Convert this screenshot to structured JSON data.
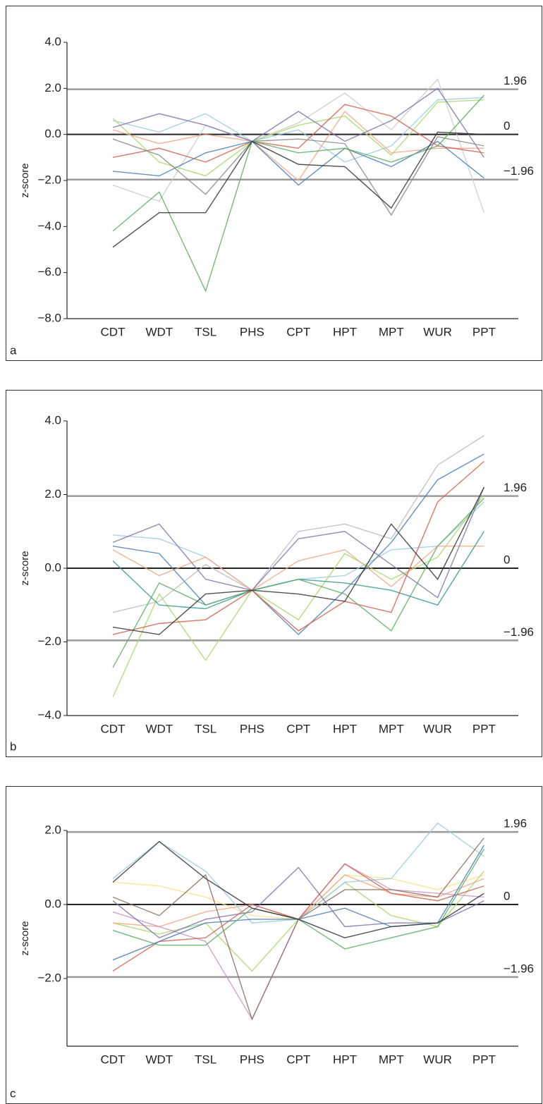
{
  "chart_data": [
    {
      "type": "line",
      "panel_label": "a",
      "y_label": "z-score",
      "categories": [
        "CDT",
        "WDT",
        "TSL",
        "PHS",
        "CPT",
        "HPT",
        "MPT",
        "WUR",
        "PPT"
      ],
      "ylim": [
        -8,
        4
      ],
      "yticks": [
        {
          "value": 4,
          "label": "4.0"
        },
        {
          "value": 2,
          "label": "2.0"
        },
        {
          "value": 0,
          "label": "0.0"
        },
        {
          "value": -2,
          "label": "−2.0"
        },
        {
          "value": -4,
          "label": "−4.0"
        },
        {
          "value": -6,
          "label": "−6.0"
        },
        {
          "value": -8,
          "label": "−8.0"
        }
      ],
      "reference_lines": [
        {
          "value": 1.96,
          "label": "1.96"
        },
        {
          "value": 0,
          "label": "0"
        },
        {
          "value": -1.96,
          "label": "−1.96"
        }
      ],
      "series": [
        {
          "color": "#cccccc",
          "values": [
            -2.2,
            -2.9,
            0.4,
            -0.3,
            0.5,
            1.8,
            0.2,
            2.4,
            -3.4
          ]
        },
        {
          "color": "#9ecae1",
          "values": [
            0.6,
            0.1,
            0.9,
            -0.3,
            0.2,
            -1.2,
            -0.5,
            1.5,
            1.6
          ]
        },
        {
          "color": "#a6d96a",
          "values": [
            0.7,
            -1.2,
            -1.8,
            -0.3,
            0.4,
            0.8,
            -0.9,
            1.4,
            1.5
          ]
        },
        {
          "color": "#f4a582",
          "values": [
            0.2,
            -0.4,
            0.0,
            -0.3,
            -2.0,
            1.0,
            -0.8,
            -0.6,
            -0.6
          ]
        },
        {
          "color": "#8073ac",
          "values": [
            0.3,
            0.9,
            0.4,
            -0.3,
            1.0,
            -0.3,
            0.6,
            2.0,
            -1.0
          ]
        },
        {
          "color": "#d6604d",
          "values": [
            -1.0,
            -0.6,
            -1.2,
            -0.3,
            -0.6,
            1.3,
            0.8,
            -0.5,
            -0.8
          ]
        },
        {
          "color": "#4a7fb5",
          "values": [
            -1.6,
            -1.8,
            -0.8,
            -0.3,
            -2.2,
            -0.6,
            -1.4,
            -0.3,
            -1.9
          ]
        },
        {
          "color": "#888888",
          "values": [
            -0.2,
            -0.9,
            -2.6,
            -0.3,
            -0.2,
            -0.4,
            -3.5,
            -0.1,
            -0.5
          ]
        },
        {
          "color": "#5aae61",
          "values": [
            -4.2,
            -2.5,
            -6.8,
            -0.3,
            -0.8,
            -0.6,
            -1.2,
            -0.5,
            1.7
          ]
        },
        {
          "color": "#333333",
          "values": [
            -4.9,
            -3.4,
            -3.4,
            -0.3,
            -1.3,
            -1.4,
            -3.2,
            0.1,
            0.0
          ]
        }
      ]
    },
    {
      "type": "line",
      "panel_label": "b",
      "y_label": "z-score",
      "categories": [
        "CDT",
        "WDT",
        "TSL",
        "PHS",
        "CPT",
        "HPT",
        "MPT",
        "WUR",
        "PPT"
      ],
      "ylim": [
        -4,
        4
      ],
      "yticks": [
        {
          "value": 4,
          "label": "4.0"
        },
        {
          "value": 2,
          "label": "2.0"
        },
        {
          "value": 0,
          "label": "0.0"
        },
        {
          "value": -2,
          "label": "−2.0"
        },
        {
          "value": -4,
          "label": "−4.0"
        }
      ],
      "reference_lines": [
        {
          "value": 1.96,
          "label": "1.96"
        },
        {
          "value": 0,
          "label": "0"
        },
        {
          "value": -1.96,
          "label": "−1.96"
        }
      ],
      "series": [
        {
          "color": "#bbbbbb",
          "values": [
            -1.2,
            -0.9,
            0.1,
            -0.6,
            1.0,
            1.2,
            0.8,
            2.8,
            3.6
          ]
        },
        {
          "color": "#9ecae1",
          "values": [
            0.9,
            0.8,
            0.3,
            -0.6,
            -0.3,
            -0.2,
            0.5,
            0.6,
            1.8
          ]
        },
        {
          "color": "#a6d96a",
          "values": [
            -3.5,
            -0.7,
            -2.5,
            -0.6,
            -1.4,
            0.4,
            -0.3,
            0.3,
            2.0
          ]
        },
        {
          "color": "#f4a582",
          "values": [
            0.5,
            -0.2,
            0.3,
            -0.6,
            0.2,
            0.5,
            -0.5,
            0.6,
            0.6
          ]
        },
        {
          "color": "#8073ac",
          "values": [
            0.7,
            1.2,
            -0.3,
            -0.6,
            0.8,
            1.0,
            0.1,
            -0.8,
            2.2
          ]
        },
        {
          "color": "#35978f",
          "values": [
            0.2,
            -1.0,
            -1.1,
            -0.6,
            -0.3,
            -0.4,
            -0.6,
            -1.0,
            1.0
          ]
        },
        {
          "color": "#4a7fb5",
          "values": [
            0.6,
            0.4,
            -1.0,
            -0.6,
            -1.8,
            -0.6,
            0.7,
            2.4,
            3.1
          ]
        },
        {
          "color": "#d6604d",
          "values": [
            -1.8,
            -1.5,
            -1.4,
            -0.6,
            -1.7,
            -0.9,
            -1.2,
            1.8,
            2.9
          ]
        },
        {
          "color": "#5aae61",
          "values": [
            -2.7,
            -0.4,
            -1.0,
            -0.6,
            -0.3,
            -0.7,
            -1.7,
            0.6,
            1.9
          ]
        },
        {
          "color": "#333333",
          "values": [
            -1.6,
            -1.8,
            -0.7,
            -0.6,
            -0.7,
            -0.9,
            1.2,
            -0.3,
            2.2
          ]
        }
      ]
    },
    {
      "type": "line",
      "panel_label": "c",
      "y_label": "z-score",
      "categories": [
        "CDT",
        "WDT",
        "TSL",
        "PHS",
        "CPT",
        "HPT",
        "MPT",
        "WUR",
        "PPT"
      ],
      "ylim": [
        -3.83,
        2
      ],
      "yticks": [
        {
          "value": 2,
          "label": "2.0"
        },
        {
          "value": 0,
          "label": "0.0"
        },
        {
          "value": -2,
          "label": "−2.0"
        }
      ],
      "reference_lines": [
        {
          "value": 1.96,
          "label": "1.96"
        },
        {
          "value": 0,
          "label": "0"
        },
        {
          "value": -1.96,
          "label": "−1.96"
        }
      ],
      "series": [
        {
          "color": "#fee08b",
          "values": [
            0.6,
            0.5,
            0.2,
            -0.3,
            -0.4,
            0.8,
            0.7,
            0.4,
            0.8
          ]
        },
        {
          "color": "#a6d96a",
          "values": [
            -0.5,
            -0.8,
            -0.5,
            -1.8,
            -0.4,
            0.6,
            -0.3,
            -0.6,
            0.9
          ]
        },
        {
          "color": "#f4a582",
          "values": [
            -0.5,
            -0.6,
            -0.2,
            0.0,
            -0.4,
            0.8,
            0.3,
            0.2,
            0.7
          ]
        },
        {
          "color": "#9ecae1",
          "values": [
            0.7,
            1.7,
            0.9,
            -0.5,
            -0.4,
            0.6,
            0.7,
            2.2,
            1.3
          ]
        },
        {
          "color": "#c994c7",
          "values": [
            -0.2,
            -0.6,
            -1.0,
            -3.1,
            -0.4,
            1.1,
            0.4,
            0.3,
            0.2
          ]
        },
        {
          "color": "#8c6d5a",
          "values": [
            0.2,
            -0.3,
            0.8,
            -3.1,
            -0.4,
            0.4,
            0.4,
            0.2,
            1.8
          ]
        },
        {
          "color": "#8073ac",
          "values": [
            0.1,
            -0.9,
            -0.4,
            -0.2,
            1.0,
            -0.6,
            -0.5,
            -0.5,
            0.1
          ]
        },
        {
          "color": "#d6604d",
          "values": [
            -1.8,
            -1.0,
            -0.9,
            0.0,
            -0.4,
            1.1,
            0.3,
            0.1,
            0.5
          ]
        },
        {
          "color": "#4a7fb5",
          "values": [
            -1.5,
            -1.0,
            -0.5,
            -0.4,
            -0.4,
            -0.1,
            -0.6,
            -0.5,
            1.6
          ]
        },
        {
          "color": "#5aae61",
          "values": [
            -0.7,
            -1.1,
            -1.1,
            -0.1,
            -0.4,
            -1.2,
            -0.9,
            -0.6,
            1.5
          ]
        },
        {
          "color": "#333333",
          "values": [
            0.6,
            1.7,
            0.7,
            -0.1,
            -0.4,
            -0.9,
            -0.6,
            -0.5,
            0.3
          ]
        }
      ]
    }
  ]
}
